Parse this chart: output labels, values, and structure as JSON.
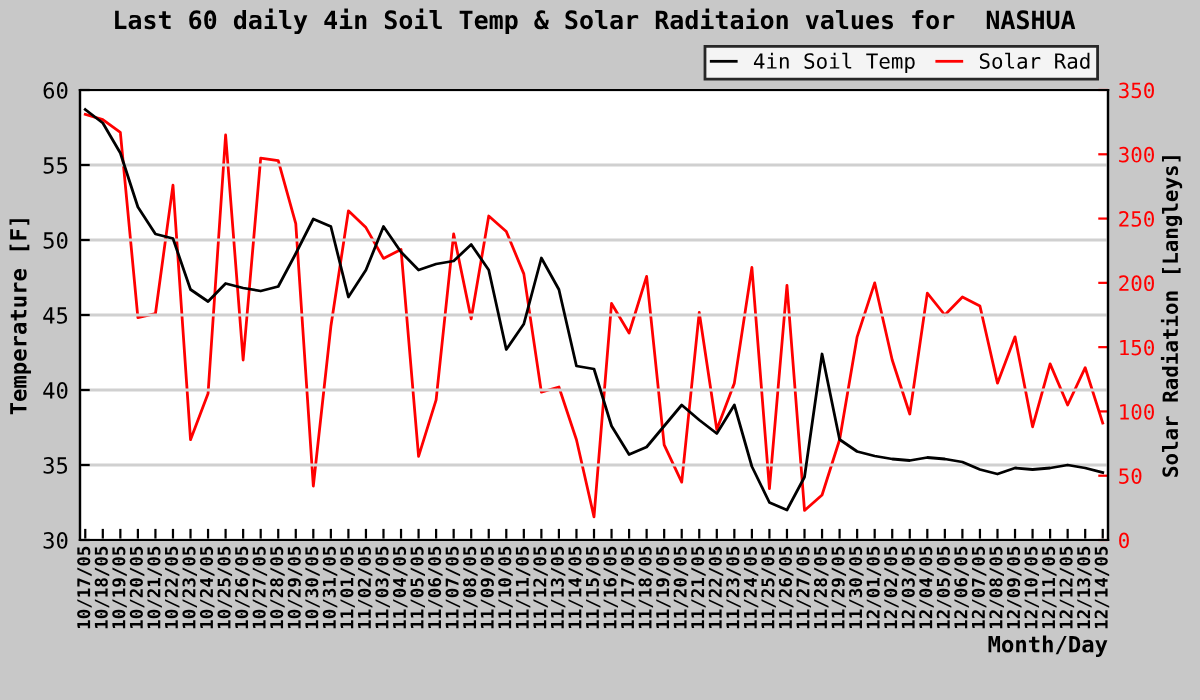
{
  "chart_data": {
    "type": "line",
    "title": "Last 60 daily 4in Soil Temp & Solar Raditaion values for  NASHUA",
    "xlabel": "Month/Day",
    "ylabel": "Temperature [F]",
    "y2label": "Solar Radiation [Langleys]",
    "categories": [
      "10/17/05",
      "10/18/05",
      "10/19/05",
      "10/20/05",
      "10/21/05",
      "10/22/05",
      "10/23/05",
      "10/24/05",
      "10/25/05",
      "10/26/05",
      "10/27/05",
      "10/28/05",
      "10/29/05",
      "10/30/05",
      "10/31/05",
      "11/01/05",
      "11/02/05",
      "11/03/05",
      "11/04/05",
      "11/05/05",
      "11/06/05",
      "11/07/05",
      "11/08/05",
      "11/09/05",
      "11/10/05",
      "11/11/05",
      "11/12/05",
      "11/13/05",
      "11/14/05",
      "11/15/05",
      "11/16/05",
      "11/17/05",
      "11/18/05",
      "11/19/05",
      "11/20/05",
      "11/21/05",
      "11/22/05",
      "11/23/05",
      "11/24/05",
      "11/25/05",
      "11/26/05",
      "11/27/05",
      "11/28/05",
      "11/29/05",
      "11/30/05",
      "12/01/05",
      "12/02/05",
      "12/03/05",
      "12/04/05",
      "12/05/05",
      "12/06/05",
      "12/07/05",
      "12/08/05",
      "12/09/05",
      "12/10/05",
      "12/11/05",
      "12/12/05",
      "12/13/05",
      "12/14/05"
    ],
    "series": [
      {
        "name": "4in Soil Temp",
        "color": "#000000",
        "values": [
          58.7,
          57.8,
          55.8,
          52.2,
          50.4,
          50.1,
          46.7,
          45.9,
          47.1,
          46.8,
          46.6,
          46.9,
          49.1,
          51.4,
          50.9,
          46.2,
          48.0,
          50.9,
          49.2,
          48.0,
          48.4,
          48.6,
          49.7,
          48.0,
          42.7,
          44.4,
          48.8,
          46.7,
          41.6,
          41.4,
          37.6,
          35.7,
          36.2,
          37.6,
          39.0,
          38.0,
          37.1,
          39.0,
          34.9,
          32.5,
          32.0,
          34.2,
          42.4,
          36.7,
          35.9,
          35.6,
          35.4,
          35.3,
          35.5,
          35.4,
          35.2,
          34.7,
          34.4,
          34.8,
          34.7,
          34.8,
          35.0,
          34.8,
          34.5
        ]
      },
      {
        "name": "Solar Rad",
        "color": "#ff0000",
        "axis": "y2",
        "values": [
          331,
          327,
          317,
          173,
          176,
          276,
          78,
          114,
          315,
          140,
          297,
          295,
          246,
          42,
          166,
          256,
          243,
          219,
          226,
          65,
          109,
          238,
          172,
          252,
          240,
          207,
          115,
          119,
          78,
          18,
          184,
          161,
          205,
          74,
          45,
          177,
          86,
          122,
          212,
          40,
          198,
          23,
          35,
          78,
          158,
          200,
          140,
          98,
          192,
          175,
          189,
          182,
          122,
          158,
          88,
          137,
          105,
          134,
          91
        ]
      }
    ],
    "ylim": [
      30,
      60
    ],
    "yticks": [
      30,
      35,
      40,
      45,
      50,
      55,
      60
    ],
    "y2lim": [
      0,
      350
    ],
    "y2ticks": [
      0,
      50,
      100,
      150,
      200,
      250,
      300,
      350
    ],
    "grid": "y",
    "legend": "top right",
    "marker": "none",
    "line_style": "solid"
  }
}
